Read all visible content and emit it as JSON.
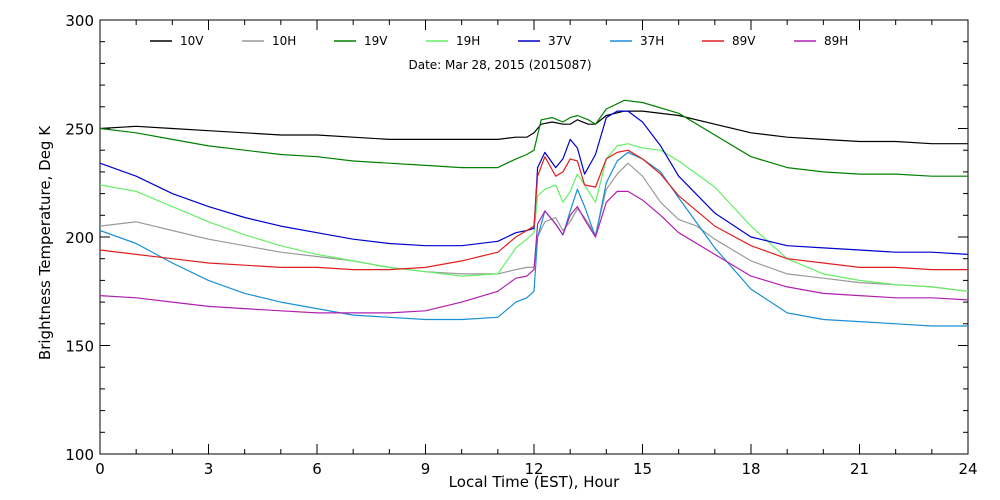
{
  "chart_data": {
    "type": "line",
    "title": "",
    "annotation": "Date: Mar 28, 2015 (2015087)",
    "xlabel": "Local Time (EST), Hour",
    "ylabel": "Brightness Temperature, Deg K",
    "xlim": [
      0,
      24
    ],
    "ylim": [
      100,
      300
    ],
    "xticks": [
      0,
      3,
      6,
      9,
      12,
      15,
      18,
      21,
      24
    ],
    "yticks": [
      100,
      150,
      200,
      250,
      300
    ],
    "grid": false,
    "legend_position": "top",
    "series": [
      {
        "name": "10V",
        "color": "#000000",
        "x": [
          0,
          1,
          2,
          3,
          4,
          5,
          6,
          7,
          8,
          9,
          10,
          11,
          11.5,
          11.8,
          12.0,
          12.2,
          12.5,
          12.8,
          13.0,
          13.2,
          13.5,
          13.7,
          14.0,
          14.5,
          15,
          16,
          17,
          18,
          19,
          20,
          21,
          22,
          23,
          24
        ],
        "y": [
          250,
          251,
          250,
          249,
          248,
          247,
          247,
          246,
          245,
          245,
          245,
          245,
          246,
          246,
          248,
          252,
          253,
          252,
          252,
          254,
          252,
          252,
          256,
          258,
          258,
          256,
          252,
          248,
          246,
          245,
          244,
          244,
          243,
          243
        ]
      },
      {
        "name": "10H",
        "color": "#9a9a9a",
        "x": [
          0,
          1,
          2,
          3,
          4,
          5,
          6,
          7,
          8,
          9,
          10,
          10.5,
          11,
          11.5,
          11.8,
          12.0,
          12.1,
          12.3,
          12.6,
          12.8,
          13.0,
          13.2,
          13.4,
          13.7,
          14.0,
          14.3,
          14.6,
          15.0,
          15.5,
          16,
          16.5,
          17,
          18,
          19,
          20,
          21,
          22,
          23,
          24
        ],
        "y": [
          205,
          207,
          203,
          199,
          196,
          193,
          191,
          189,
          186,
          184,
          183,
          183,
          183,
          185,
          186,
          186,
          200,
          207,
          209,
          203,
          207,
          213,
          209,
          201,
          222,
          229,
          234,
          228,
          216,
          208,
          205,
          199,
          189,
          183,
          181,
          179,
          178,
          177,
          175
        ]
      },
      {
        "name": "19V",
        "color": "#008000",
        "x": [
          0,
          1,
          2,
          3,
          4,
          5,
          6,
          7,
          8,
          9,
          10,
          11,
          11.5,
          11.8,
          12.0,
          12.2,
          12.5,
          12.8,
          13.0,
          13.2,
          13.5,
          13.7,
          14.0,
          14.5,
          15,
          16,
          17,
          18,
          19,
          20,
          21,
          22,
          23,
          24
        ],
        "y": [
          250,
          248,
          245,
          242,
          240,
          238,
          237,
          235,
          234,
          233,
          232,
          232,
          236,
          238,
          240,
          254,
          255,
          253,
          255,
          256,
          254,
          252,
          259,
          263,
          262,
          257,
          247,
          237,
          232,
          230,
          229,
          229,
          228,
          228
        ]
      },
      {
        "name": "19H",
        "color": "#66ee66",
        "x": [
          0,
          1,
          2,
          3,
          4,
          5,
          6,
          7,
          8,
          9,
          10,
          11,
          11.5,
          11.8,
          12.0,
          12.1,
          12.3,
          12.6,
          12.8,
          13.0,
          13.2,
          13.4,
          13.7,
          14.0,
          14.3,
          14.6,
          15.0,
          15.5,
          16,
          17,
          18,
          19,
          20,
          21,
          22,
          23,
          24
        ],
        "y": [
          224,
          221,
          214,
          207,
          201,
          196,
          192,
          189,
          186,
          184,
          182,
          183,
          195,
          199,
          202,
          219,
          222,
          224,
          216,
          221,
          229,
          224,
          216,
          236,
          242,
          243,
          241,
          240,
          235,
          223,
          205,
          190,
          183,
          180,
          178,
          177,
          175
        ]
      },
      {
        "name": "37V",
        "color": "#0000cc",
        "x": [
          0,
          1,
          2,
          3,
          4,
          5,
          6,
          7,
          8,
          9,
          10,
          11,
          11.5,
          11.8,
          12.0,
          12.1,
          12.3,
          12.6,
          12.8,
          13.0,
          13.2,
          13.4,
          13.7,
          14.0,
          14.3,
          14.6,
          15.0,
          15.5,
          16,
          17,
          18,
          19,
          20,
          21,
          22,
          23,
          24
        ],
        "y": [
          234,
          228,
          220,
          214,
          209,
          205,
          202,
          199,
          197,
          196,
          196,
          198,
          202,
          203,
          204,
          232,
          239,
          232,
          236,
          245,
          241,
          229,
          238,
          255,
          258,
          258,
          253,
          242,
          228,
          211,
          200,
          196,
          195,
          194,
          193,
          193,
          192
        ]
      },
      {
        "name": "37H",
        "color": "#1a8fd6",
        "x": [
          0,
          1,
          2,
          3,
          4,
          5,
          6,
          7,
          8,
          9,
          10,
          11,
          11.5,
          11.8,
          12.0,
          12.1,
          12.3,
          12.6,
          12.8,
          13.0,
          13.2,
          13.4,
          13.7,
          14.0,
          14.3,
          14.6,
          15.0,
          15.5,
          16,
          17,
          18,
          19,
          20,
          21,
          22,
          23,
          24
        ],
        "y": [
          203,
          197,
          188,
          180,
          174,
          170,
          167,
          164,
          163,
          162,
          162,
          163,
          170,
          172,
          175,
          200,
          212,
          206,
          201,
          212,
          222,
          214,
          200,
          225,
          235,
          239,
          236,
          230,
          218,
          195,
          176,
          165,
          162,
          161,
          160,
          159,
          159
        ]
      },
      {
        "name": "89V",
        "color": "#e02020",
        "x": [
          0,
          1,
          2,
          3,
          4,
          5,
          6,
          7,
          8,
          9,
          10,
          11,
          11.5,
          11.8,
          12.0,
          12.1,
          12.3,
          12.6,
          12.8,
          13.0,
          13.2,
          13.4,
          13.7,
          14.0,
          14.3,
          14.6,
          15.0,
          15.5,
          16,
          17,
          18,
          19,
          20,
          21,
          22,
          23,
          24
        ],
        "y": [
          194,
          192,
          190,
          188,
          187,
          186,
          186,
          185,
          185,
          186,
          189,
          193,
          200,
          203,
          205,
          228,
          237,
          228,
          230,
          236,
          235,
          224,
          223,
          236,
          239,
          240,
          236,
          229,
          219,
          205,
          196,
          190,
          188,
          186,
          186,
          185,
          185
        ]
      },
      {
        "name": "89H",
        "color": "#b020b0",
        "x": [
          0,
          1,
          2,
          3,
          4,
          5,
          6,
          7,
          8,
          9,
          10,
          11,
          11.5,
          11.8,
          12.0,
          12.1,
          12.3,
          12.6,
          12.8,
          13.0,
          13.2,
          13.4,
          13.7,
          14.0,
          14.3,
          14.6,
          15.0,
          15.5,
          16,
          17,
          18,
          19,
          20,
          21,
          22,
          23,
          24
        ],
        "y": [
          173,
          172,
          170,
          168,
          167,
          166,
          165,
          165,
          165,
          166,
          170,
          175,
          181,
          182,
          185,
          206,
          212,
          206,
          201,
          210,
          214,
          208,
          200,
          216,
          221,
          221,
          217,
          210,
          202,
          192,
          182,
          177,
          174,
          173,
          172,
          172,
          171
        ]
      }
    ]
  }
}
